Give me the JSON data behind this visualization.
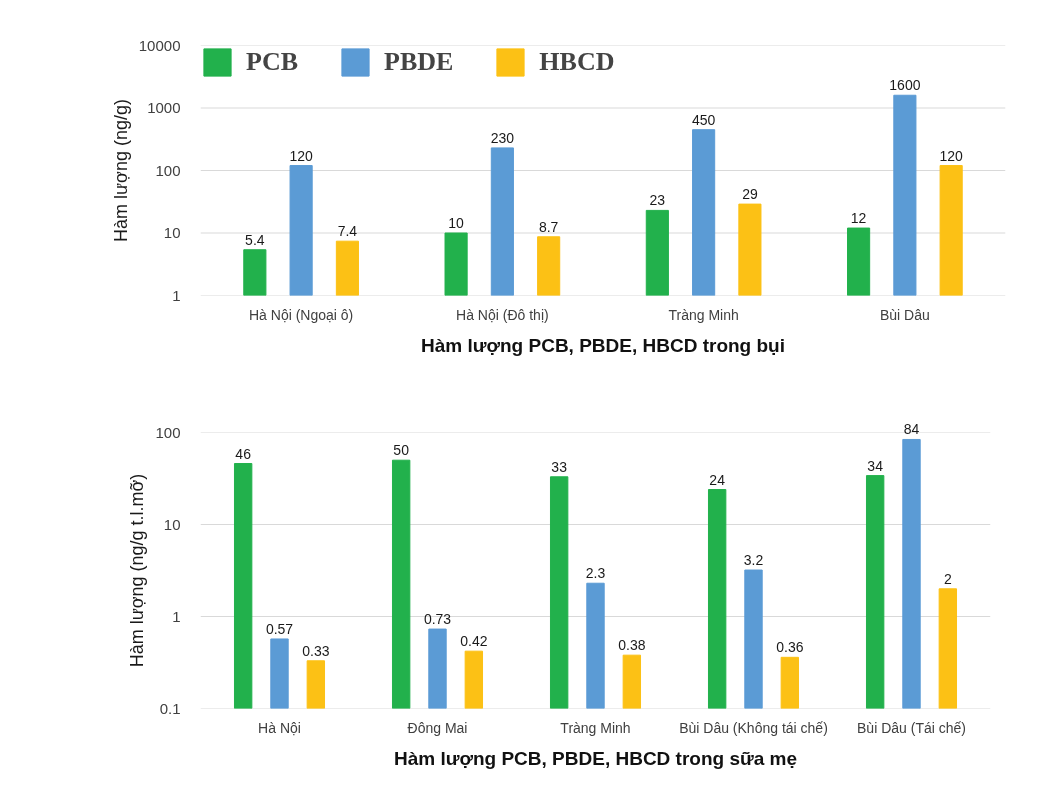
{
  "chart_data": [
    {
      "type": "bar",
      "title": "Hàm lượng PCB, PBDE, HBCD trong bụi",
      "ylabel": "Hàm lượng (ng/g)",
      "categories": [
        "Hà Nội (Ngoại ô)",
        "Hà Nội (Đô thị)",
        "Tràng Minh",
        "Bùi Dâu"
      ],
      "series": [
        {
          "name": "PCB",
          "color": "#22b14c",
          "values": [
            5.4,
            10,
            23,
            12
          ]
        },
        {
          "name": "PBDE",
          "color": "#5b9bd5",
          "values": [
            120,
            230,
            450,
            1600
          ]
        },
        {
          "name": "HBCD",
          "color": "#fcc115",
          "values": [
            7.4,
            8.7,
            29,
            120
          ]
        }
      ],
      "log": true,
      "ylim": [
        1,
        10000
      ],
      "yticks": [
        1,
        10,
        100,
        1000,
        10000
      ],
      "grid": "y",
      "legend": "top left",
      "data_labels": true
    },
    {
      "type": "bar",
      "title": "Hàm lượng PCB, PBDE, HBCD trong sữa mẹ",
      "ylabel": "Hàm lượng (ng/g t.l.mỡ)",
      "categories": [
        "Hà Nội",
        "Đông Mai",
        "Tràng Minh",
        "Bùi Dâu (Không tái chế)",
        "Bùi Dâu (Tái chế)"
      ],
      "series": [
        {
          "color": "#22b14c",
          "values": [
            46,
            50,
            33,
            24,
            34
          ]
        },
        {
          "color": "#5b9bd5",
          "values": [
            0.57,
            0.73,
            2.3,
            3.2,
            84
          ]
        },
        {
          "color": "#fcc115",
          "values": [
            0.33,
            0.42,
            0.38,
            0.36,
            2
          ]
        }
      ],
      "log": true,
      "ylim": [
        0.1,
        100
      ],
      "yticks": [
        0.1,
        1,
        10,
        100
      ],
      "grid": "y",
      "data_labels": true
    }
  ]
}
